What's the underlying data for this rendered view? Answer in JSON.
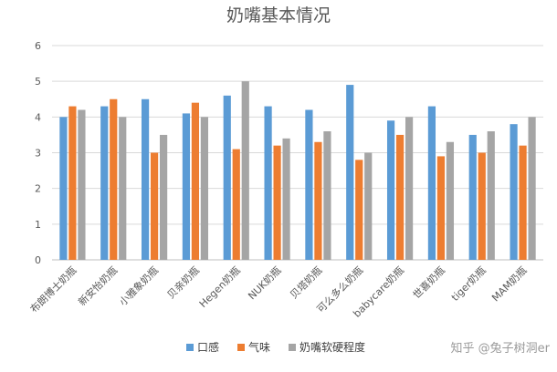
{
  "chart_data": {
    "type": "bar",
    "title": "奶嘴基本情况",
    "categories": [
      "布朗博士奶瓶",
      "新安怡奶瓶",
      "小雅象奶瓶",
      "贝亲奶瓶",
      "Hegen奶瓶",
      "NUK奶瓶",
      "贝塔奶瓶",
      "可么多么奶瓶",
      "babycare奶瓶",
      "世喜奶瓶",
      "tiger奶瓶",
      "MAM奶瓶"
    ],
    "series": [
      {
        "name": "口感",
        "color": "#5b9bd5",
        "values": [
          4.0,
          4.3,
          4.5,
          4.1,
          4.6,
          4.3,
          4.2,
          4.9,
          3.9,
          4.3,
          3.5,
          3.8
        ]
      },
      {
        "name": "气味",
        "color": "#ed7d31",
        "values": [
          4.3,
          4.5,
          3.0,
          4.4,
          3.1,
          3.2,
          3.3,
          2.8,
          3.5,
          2.9,
          3.0,
          3.2
        ]
      },
      {
        "name": "奶嘴软硬程度",
        "color": "#a5a5a5",
        "values": [
          4.2,
          4.0,
          3.5,
          4.0,
          5.0,
          3.4,
          3.6,
          3.0,
          4.0,
          3.3,
          3.6,
          4.0
        ]
      }
    ],
    "ylim": [
      0,
      6
    ],
    "yticks": [
      0,
      1,
      2,
      3,
      4,
      5,
      6
    ],
    "grid": true,
    "legend": "bottom"
  },
  "watermark": "知乎 @兔子树洞er"
}
